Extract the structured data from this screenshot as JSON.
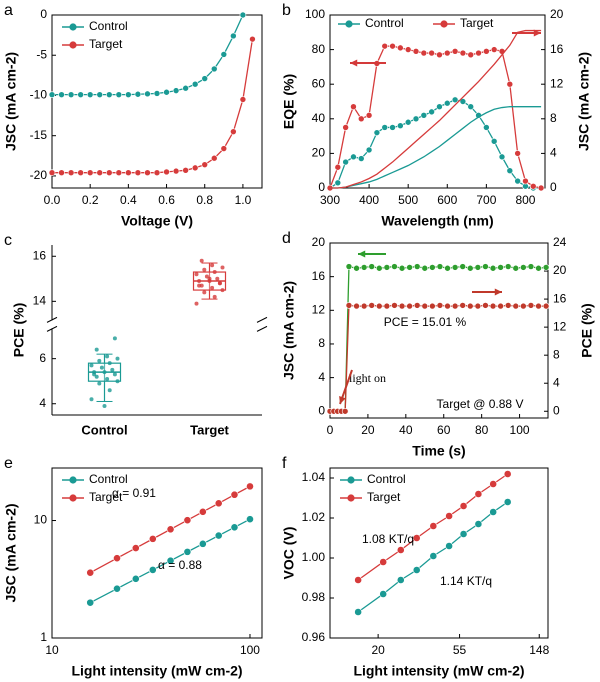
{
  "chart_data": [
    {
      "type": "line",
      "panel_label": "a",
      "xlabel": "Voltage (V)",
      "ylabel": "JSC (mA cm-2)",
      "xlim": [
        0,
        1.1
      ],
      "xticks": [
        {
          "value": 0,
          "label": "0.0"
        },
        0.2,
        0.4,
        0.6,
        0.8,
        {
          "value": 1,
          "label": "1.0"
        }
      ],
      "ylim": [
        -21.5,
        0
      ],
      "yticks": [
        0,
        -5,
        -10,
        -15,
        -20
      ],
      "legend": "upper left",
      "series": [
        {
          "name": "Control",
          "color": "#1a9a94",
          "x": [
            0,
            0.05,
            0.1,
            0.15,
            0.2,
            0.25,
            0.3,
            0.35,
            0.4,
            0.45,
            0.5,
            0.55,
            0.6,
            0.65,
            0.7,
            0.75,
            0.8,
            0.85,
            0.9,
            0.95,
            1.0
          ],
          "values": [
            -9.9,
            -9.9,
            -9.9,
            -9.9,
            -9.9,
            -9.9,
            -9.9,
            -9.9,
            -9.9,
            -9.85,
            -9.8,
            -9.75,
            -9.6,
            -9.4,
            -9.1,
            -8.6,
            -7.9,
            -6.7,
            -4.9,
            -2.6,
            0
          ]
        },
        {
          "name": "Target",
          "color": "#d63b3b",
          "x": [
            0,
            0.05,
            0.1,
            0.15,
            0.2,
            0.25,
            0.3,
            0.35,
            0.4,
            0.45,
            0.5,
            0.55,
            0.6,
            0.65,
            0.7,
            0.75,
            0.8,
            0.85,
            0.9,
            0.95,
            1.0,
            1.05
          ],
          "values": [
            -19.6,
            -19.6,
            -19.6,
            -19.6,
            -19.6,
            -19.6,
            -19.6,
            -19.6,
            -19.6,
            -19.6,
            -19.6,
            -19.6,
            -19.5,
            -19.4,
            -19.3,
            -19.0,
            -18.6,
            -17.8,
            -16.6,
            -14.5,
            -10.5,
            -3.0
          ]
        }
      ]
    },
    {
      "type": "line",
      "panel_label": "b",
      "xlabel": "Wavelength (nm)",
      "ylabel": "EQE (%)",
      "y2label": "JSC (mA cm-2)",
      "xlim": [
        300,
        850
      ],
      "xticks": [
        300,
        400,
        500,
        600,
        700,
        800
      ],
      "ylim": [
        0,
        100
      ],
      "yticks": [
        0,
        20,
        40,
        60,
        80,
        100
      ],
      "y2lim": [
        0,
        20
      ],
      "y2ticks": [
        0,
        4,
        8,
        12,
        16,
        20
      ],
      "legend": "upper center",
      "x": [
        300,
        320,
        340,
        360,
        380,
        400,
        420,
        440,
        460,
        480,
        500,
        520,
        540,
        560,
        580,
        600,
        620,
        640,
        660,
        680,
        700,
        720,
        740,
        760,
        780,
        800,
        820,
        840
      ],
      "series": [
        {
          "name": "Control",
          "color": "#1a9a94",
          "values": [
            0,
            3,
            15,
            18,
            17,
            22,
            32,
            35,
            35,
            36,
            38,
            40,
            42,
            44,
            47,
            49,
            51,
            50,
            47,
            42,
            35,
            27,
            18,
            10,
            4,
            1,
            0,
            0
          ]
        },
        {
          "name": "Target",
          "color": "#d63b3b",
          "values": [
            0,
            12,
            35,
            47,
            40,
            42,
            72,
            82,
            82,
            81,
            80,
            79,
            78,
            78,
            77,
            78,
            79,
            78,
            77,
            78,
            79,
            80,
            79,
            60,
            20,
            4,
            1,
            0
          ]
        },
        {
          "color": "#1a9a94",
          "axis": "y2",
          "marker": false,
          "values": [
            0,
            0,
            0.1,
            0.3,
            0.5,
            0.7,
            1.0,
            1.4,
            1.8,
            2.2,
            2.6,
            3.1,
            3.6,
            4.2,
            4.8,
            5.5,
            6.2,
            6.9,
            7.6,
            8.2,
            8.7,
            9.1,
            9.3,
            9.4,
            9.4,
            9.4,
            9.4,
            9.4
          ]
        },
        {
          "color": "#d63b3b",
          "axis": "y2",
          "marker": false,
          "values": [
            0,
            0,
            0.1,
            0.4,
            0.7,
            1.1,
            1.6,
            2.3,
            3.0,
            3.8,
            4.6,
            5.4,
            6.2,
            7.0,
            7.8,
            8.7,
            9.6,
            10.5,
            11.4,
            12.3,
            13.3,
            14.3,
            15.4,
            16.5,
            18.0,
            18.2,
            18.2,
            18.2
          ]
        }
      ]
    },
    {
      "type": "box",
      "panel_label": "c",
      "ylabel": "PCE (%)",
      "categories": [
        "Control",
        "Target"
      ],
      "colors": [
        "#1a9a94",
        "#d63b3b"
      ],
      "ylim": [
        3.5,
        16.5
      ],
      "axis_break": [
        7.3,
        13.2
      ],
      "yticks": [
        4,
        6,
        14,
        16
      ],
      "boxes": [
        {
          "whislo": 4.1,
          "q1": 5.0,
          "med": 5.4,
          "q3": 5.8,
          "whishi": 6.2
        },
        {
          "whislo": 14.1,
          "q1": 14.5,
          "med": 14.9,
          "q3": 15.3,
          "whishi": 15.7
        }
      ],
      "points": [
        [
          4.2,
          4.6,
          4.9,
          5.0,
          5.1,
          5.2,
          5.3,
          5.4,
          5.4,
          5.5,
          5.6,
          5.7,
          5.8,
          5.9,
          6.0,
          6.1,
          6.4,
          6.9,
          3.9,
          5.3
        ],
        [
          13.9,
          14.2,
          14.4,
          14.5,
          14.6,
          14.7,
          14.8,
          14.9,
          14.9,
          15.0,
          15.1,
          15.2,
          15.3,
          15.4,
          15.5,
          15.6,
          15.8,
          14.8,
          15.0,
          14.7
        ]
      ]
    },
    {
      "type": "line",
      "panel_label": "d",
      "xlabel": "Time (s)",
      "ylabel": "JSC (mA cm-2)",
      "y2label": "PCE (%)",
      "xlim": [
        0,
        115
      ],
      "xticks": [
        0,
        20,
        40,
        60,
        80,
        100
      ],
      "ylim": [
        -0.8,
        20
      ],
      "yticks": [
        0,
        4,
        8,
        12,
        16,
        20
      ],
      "ycolor": "#2e9e2e",
      "y2lim": [
        -0.96,
        24
      ],
      "y2ticks": [
        0,
        4,
        8,
        12,
        16,
        20,
        24
      ],
      "y2color": "#c0392b",
      "x": [
        0,
        2,
        4,
        6,
        8,
        10,
        14,
        18,
        22,
        26,
        30,
        34,
        38,
        42,
        46,
        50,
        54,
        58,
        62,
        66,
        70,
        74,
        78,
        82,
        86,
        90,
        94,
        98,
        102,
        106,
        110,
        114
      ],
      "series": [
        {
          "color": "#2e9e2e",
          "values": [
            0,
            0,
            0,
            0,
            0,
            17.2,
            17.0,
            17.1,
            17.2,
            17.0,
            17.1,
            17.2,
            17.0,
            17.1,
            17.2,
            17.0,
            17.1,
            17.2,
            17.0,
            17.1,
            17.2,
            17.0,
            17.1,
            17.2,
            17.0,
            17.1,
            17.2,
            17.0,
            17.1,
            17.2,
            17.0,
            17.1
          ]
        },
        {
          "color": "#c0392b",
          "axis": "y2",
          "values": [
            0,
            0,
            0,
            0,
            0,
            15.1,
            15.0,
            15.0,
            15.1,
            15.0,
            15.0,
            15.1,
            15.0,
            15.0,
            15.1,
            15.0,
            15.0,
            15.1,
            15.0,
            15.0,
            15.1,
            15.0,
            15.0,
            15.1,
            15.0,
            15.0,
            15.1,
            15.0,
            15.0,
            15.1,
            15.0,
            15.0
          ]
        }
      ],
      "annotations": [
        {
          "text": "PCE = 15.01 %",
          "color": "#c0392b"
        },
        {
          "text": "light on",
          "color": "#000000"
        },
        {
          "text": "Target @ 0.88 V",
          "color": "#c0392b"
        }
      ]
    },
    {
      "type": "line",
      "panel_label": "e",
      "xlabel": "Light intensity (mW cm-2)",
      "ylabel": "JSC (mA cm-2)",
      "xscale": "log",
      "yscale": "log",
      "xlim": [
        10,
        115
      ],
      "xticks": [
        10,
        100
      ],
      "ylim": [
        1,
        28
      ],
      "yticks": [
        1,
        10
      ],
      "legend": "upper left",
      "x": [
        15.6,
        21.3,
        26.5,
        32.3,
        39.7,
        48.3,
        57.8,
        69.5,
        83.5,
        100
      ],
      "series": [
        {
          "name": "Control",
          "color": "#1a9a94",
          "values": [
            2.0,
            2.63,
            3.19,
            3.8,
            4.55,
            5.41,
            6.33,
            7.45,
            8.75,
            10.26
          ]
        },
        {
          "name": "Target",
          "color": "#d63b3b",
          "values": [
            3.6,
            4.78,
            5.83,
            6.98,
            8.42,
            10.07,
            11.86,
            14.02,
            16.58,
            19.53
          ]
        }
      ],
      "annotations": [
        {
          "text": "α = 0.91",
          "color": "#d63b3b"
        },
        {
          "text": "α = 0.88",
          "color": "#1a9a94"
        }
      ]
    },
    {
      "type": "line",
      "panel_label": "f",
      "xlabel": "Light intensity (mW cm-2)",
      "ylabel": "VOC (V)",
      "xscale": "log",
      "xlim": [
        11,
        165
      ],
      "xticks": [
        20,
        55,
        148
      ],
      "ylim": [
        0.96,
        1.045
      ],
      "yticks": [
        0.96,
        0.98,
        {
          "value": 1,
          "label": "1.00"
        },
        1.02,
        1.04
      ],
      "legend": "upper left",
      "x": [
        15.6,
        21.3,
        26.5,
        32.3,
        39.7,
        48.3,
        57.8,
        69.5,
        83.5,
        100
      ],
      "series": [
        {
          "name": "Control",
          "color": "#1a9a94",
          "values": [
            0.973,
            0.982,
            0.989,
            0.994,
            1.001,
            1.006,
            1.012,
            1.017,
            1.023,
            1.028
          ]
        },
        {
          "name": "Target",
          "color": "#d63b3b",
          "values": [
            0.989,
            0.998,
            1.004,
            1.01,
            1.016,
            1.021,
            1.026,
            1.032,
            1.037,
            1.042
          ]
        }
      ],
      "annotations": [
        {
          "text": "1.08 KT/q",
          "color": "#d63b3b"
        },
        {
          "text": "1.14 KT/q",
          "color": "#1a9a94"
        }
      ]
    }
  ]
}
